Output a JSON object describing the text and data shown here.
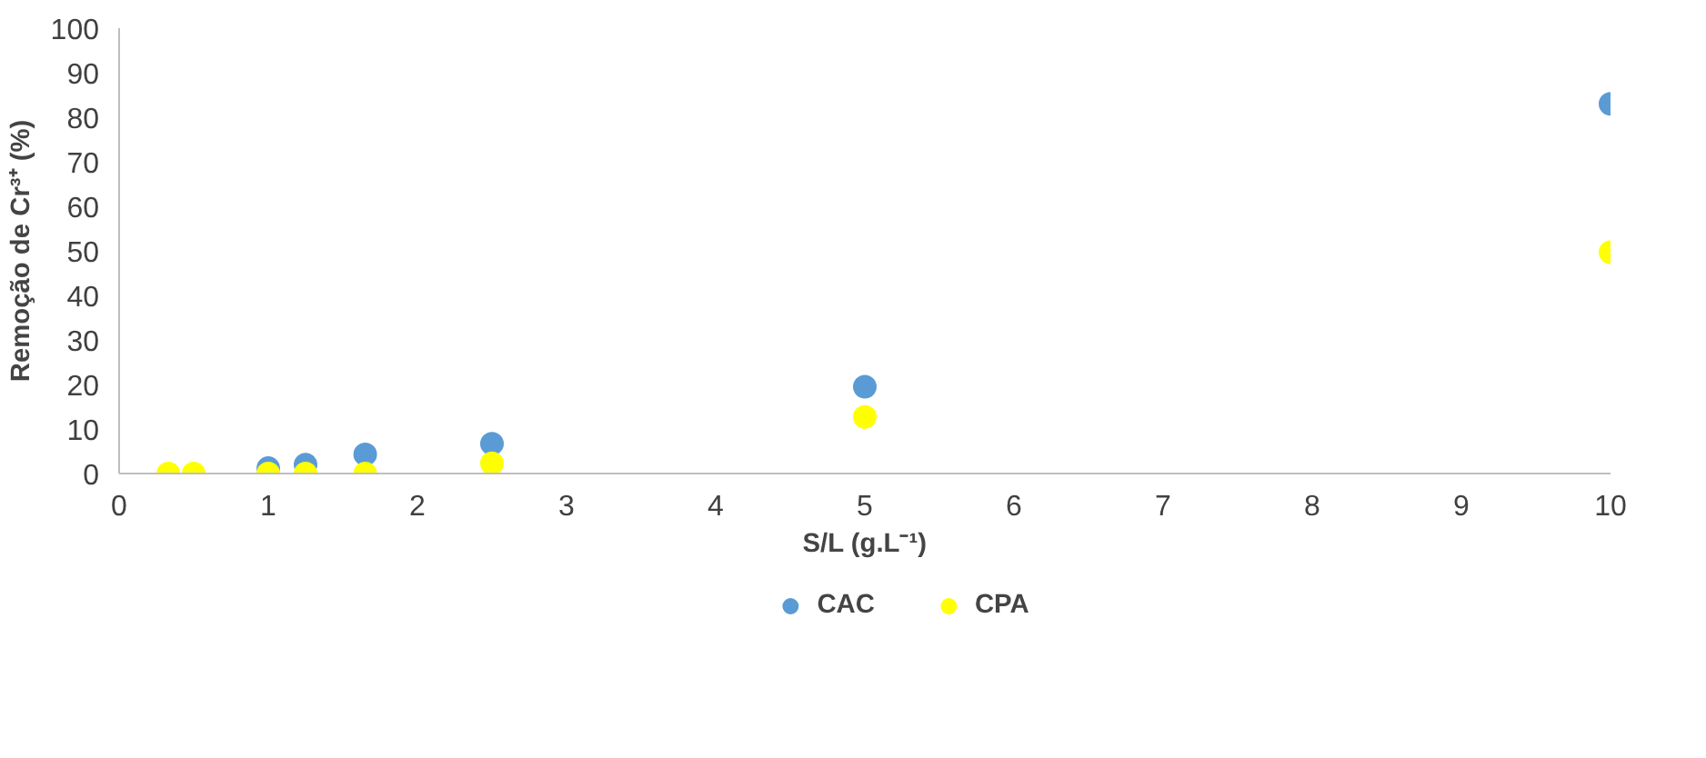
{
  "chart_data": {
    "type": "scatter",
    "xlabel": "S/L (g.L⁻¹)",
    "ylabel": "Remoção de Cr³⁺ (%)",
    "x": [
      0.33,
      0.5,
      1,
      1.25,
      1.65,
      2.5,
      5,
      10
    ],
    "series": [
      {
        "name": "CAC",
        "color": "#5b9bd5",
        "values": [
          null,
          null,
          1.2,
          2,
          4.3,
          6.7,
          19.5,
          83
        ]
      },
      {
        "name": "CPA",
        "color": "#ffff00",
        "values": [
          0,
          0,
          0,
          0,
          0,
          2.3,
          12.7,
          49.7
        ]
      }
    ],
    "xlim": [
      0,
      10
    ],
    "xticks": [
      0,
      1,
      2,
      3,
      4,
      5,
      6,
      7,
      8,
      9,
      10
    ],
    "ylim": [
      0,
      100
    ],
    "yticks": [
      0,
      10,
      20,
      30,
      40,
      50,
      60,
      70,
      80,
      90,
      100
    ],
    "grid": false,
    "legend": "bottom",
    "marker": "circle"
  }
}
